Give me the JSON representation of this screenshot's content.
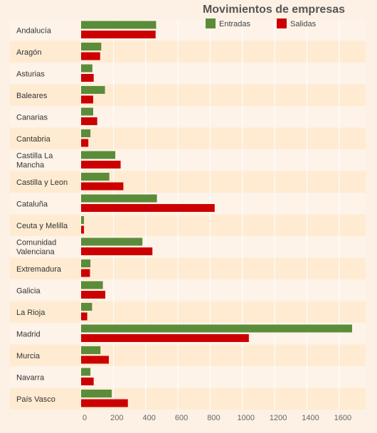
{
  "chart_data": {
    "type": "bar",
    "orientation": "horizontal",
    "title": "Movimientos de empresas",
    "categories": [
      "Andalucía",
      "Aragón",
      "Asturias",
      "Baleares",
      "Canarias",
      "Cantabria",
      "Castilla La Mancha",
      "Castilla y Leon",
      "Cataluña",
      "Ceuta y Melilla",
      "Comunidad Valenciana",
      "Extremadura",
      "Galicia",
      "La Rioja",
      "Madrid",
      "Murcia",
      "Navarra",
      "País Vasco"
    ],
    "series": [
      {
        "name": "Entradas",
        "color": "#5b8c3a",
        "values": [
          465,
          125,
          70,
          148,
          75,
          58,
          212,
          175,
          470,
          18,
          380,
          58,
          135,
          68,
          1680,
          120,
          58,
          190
        ]
      },
      {
        "name": "Salidas",
        "color": "#cc0000",
        "values": [
          462,
          118,
          78,
          75,
          100,
          45,
          245,
          262,
          828,
          18,
          442,
          55,
          150,
          38,
          1040,
          172,
          78,
          290
        ]
      }
    ],
    "xlim": [
      -10,
      1760
    ],
    "xticks": [
      0,
      200,
      400,
      600,
      800,
      1000,
      1200,
      1400,
      1600
    ],
    "grid": true,
    "legend": "top-right"
  }
}
